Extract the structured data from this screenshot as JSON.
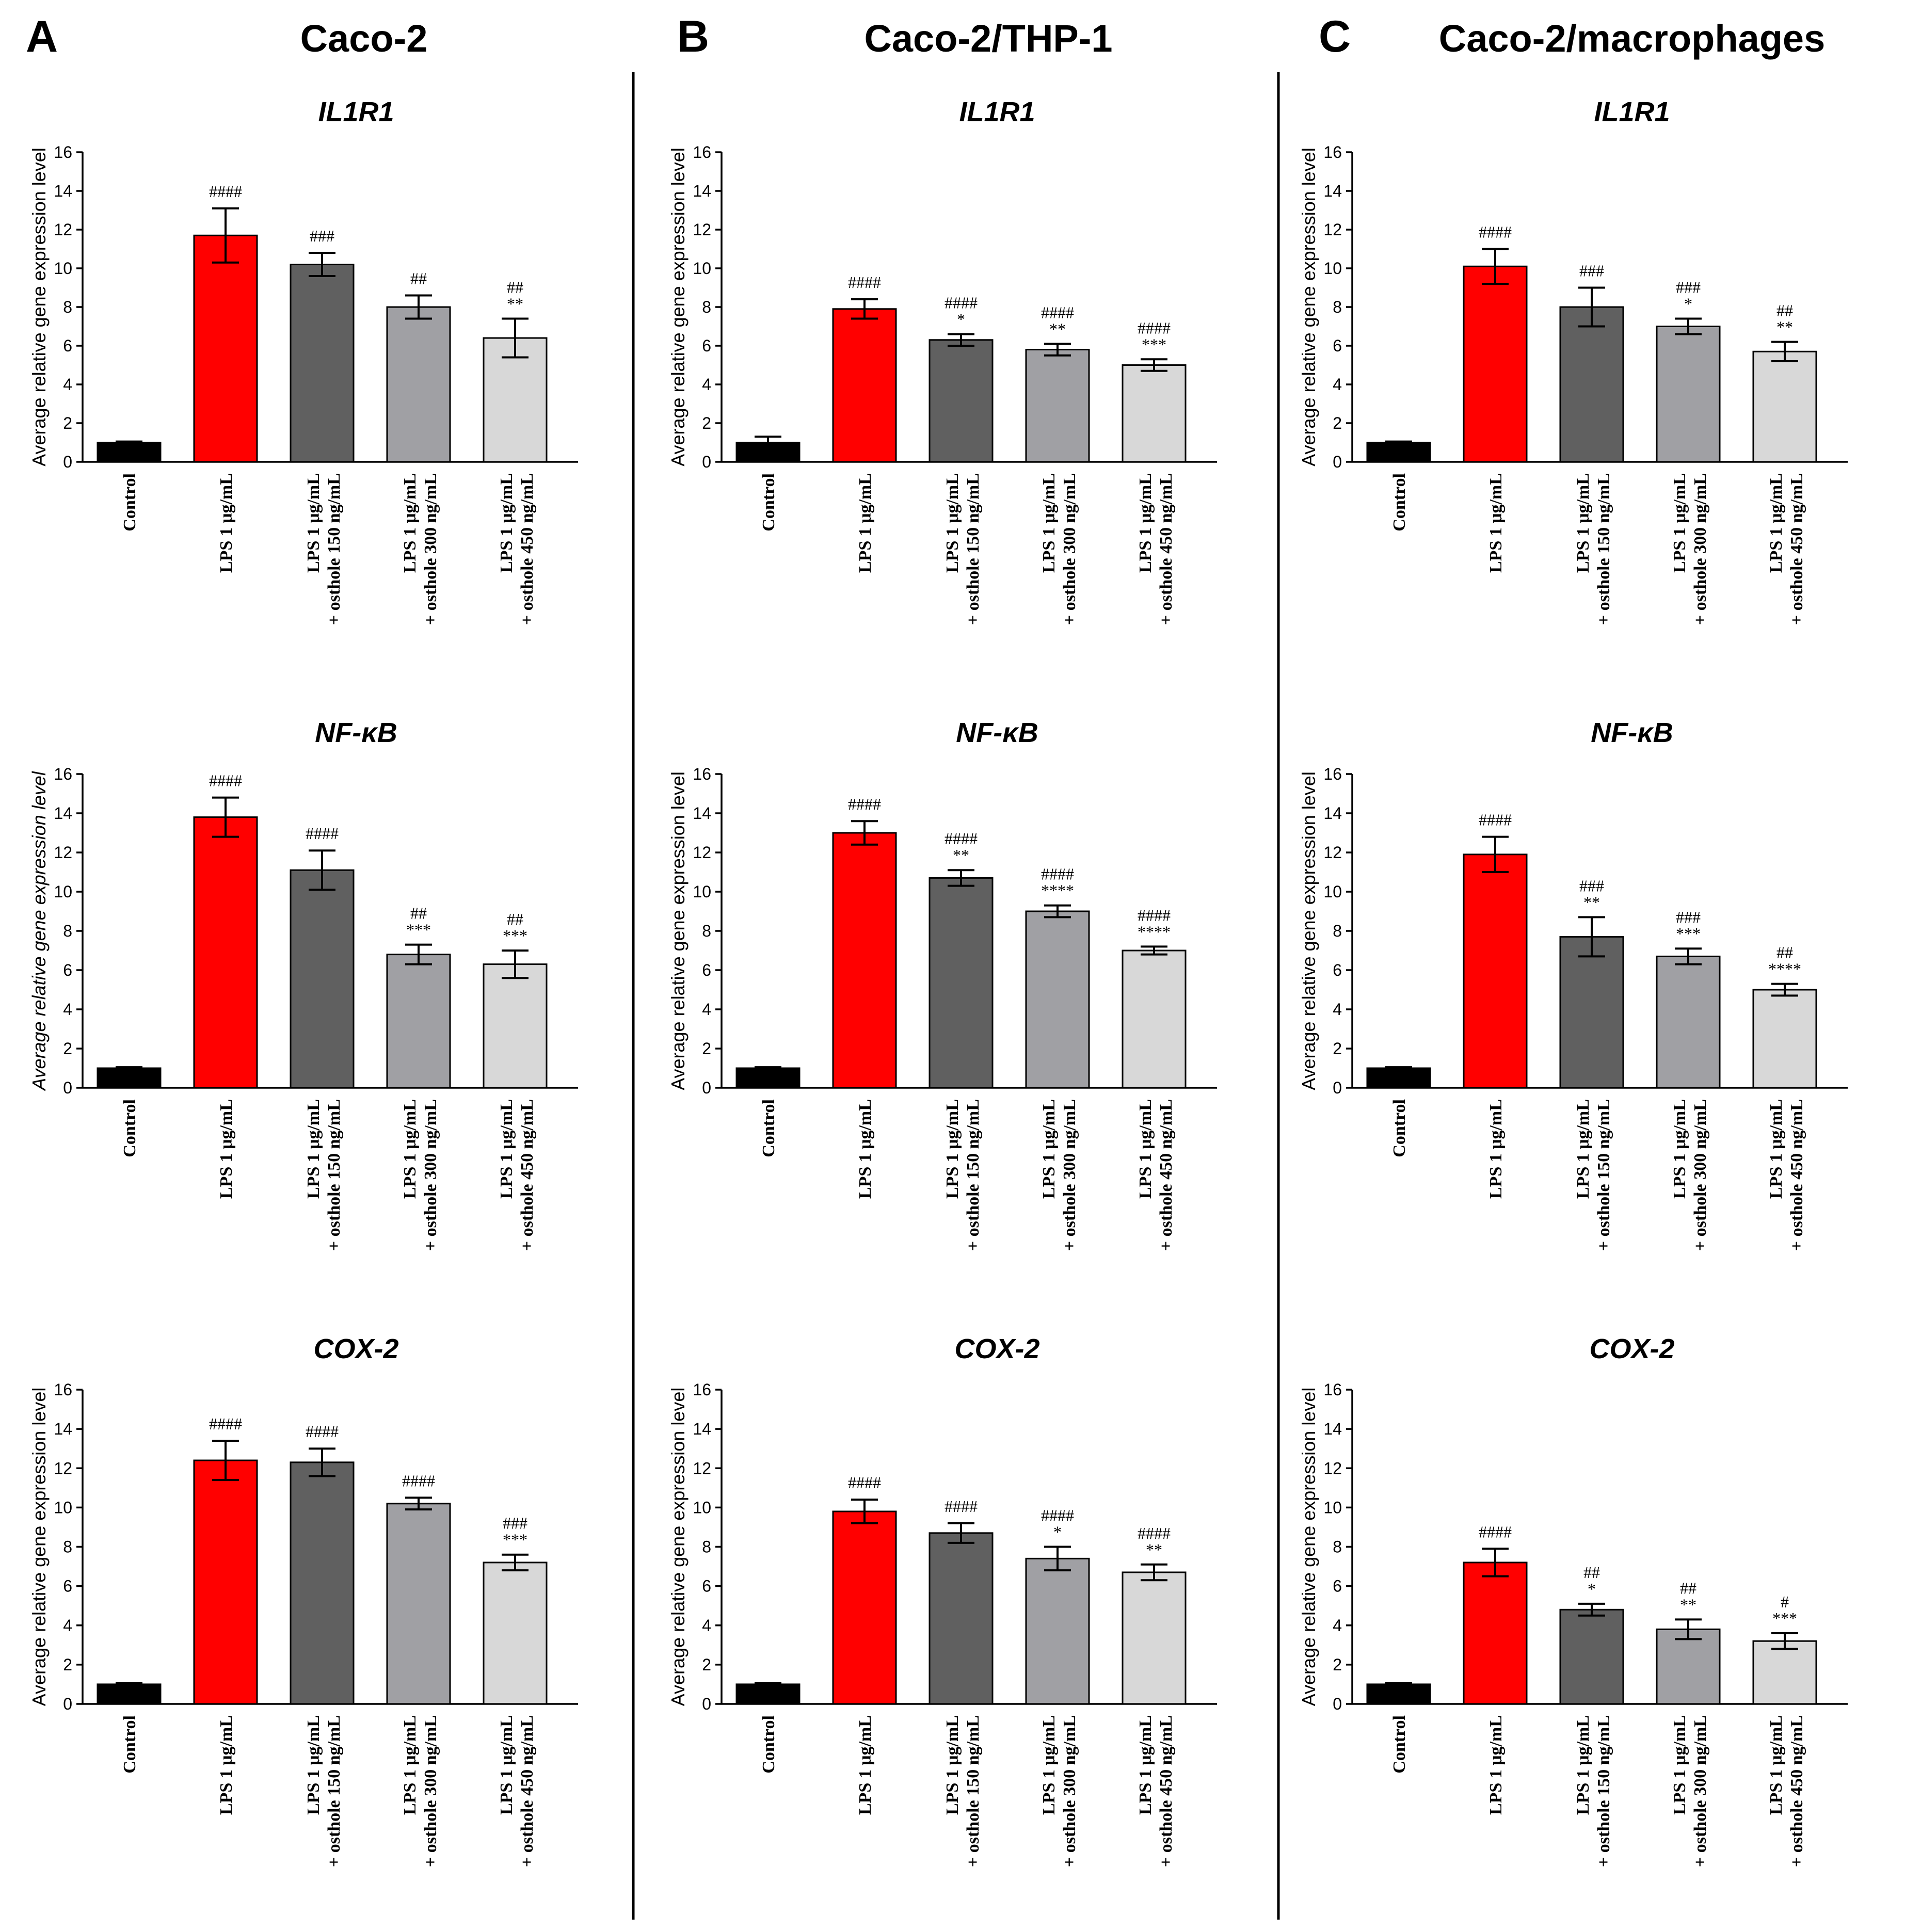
{
  "figure": {
    "columns": [
      {
        "letter": "A",
        "title": "Caco-2"
      },
      {
        "letter": "B",
        "title": "Caco-2/THP-1"
      },
      {
        "letter": "C",
        "title": "Caco-2/macrophages"
      }
    ]
  },
  "colors": {
    "bars": [
      "#000000",
      "#ff0000",
      "#606060",
      "#a0a0a4",
      "#d8d8d8"
    ]
  },
  "chart_data": [
    {
      "type": "bar",
      "column": "Caco-2",
      "title": "IL1R1",
      "ylabel": "Average relative gene expression level",
      "ylabel_italic": false,
      "ylim": [
        0,
        16
      ],
      "yticks": [
        0,
        2,
        4,
        6,
        8,
        10,
        12,
        14,
        16
      ],
      "categories": [
        "Control",
        "LPS 1 μg/mL",
        "LPS 1 μg/mL|+ osthole 150 ng/mL",
        "LPS 1 μg/mL|+ osthole 300 ng/mL",
        "LPS 1 μg/mL|+ osthole 450 ng/mL"
      ],
      "values": [
        1.0,
        11.7,
        10.2,
        8.0,
        6.4
      ],
      "errors": [
        0.05,
        1.4,
        0.6,
        0.6,
        1.0
      ],
      "sig_hash": [
        "",
        "####",
        "###",
        "##",
        "##"
      ],
      "sig_star": [
        "",
        "",
        "",
        "",
        "**"
      ]
    },
    {
      "type": "bar",
      "column": "Caco-2/THP-1",
      "title": "IL1R1",
      "ylabel": "Average relative gene expression level",
      "ylabel_italic": false,
      "ylim": [
        0,
        16
      ],
      "yticks": [
        0,
        2,
        4,
        6,
        8,
        10,
        12,
        14,
        16
      ],
      "categories": [
        "Control",
        "LPS 1 μg/mL",
        "LPS 1 μg/mL|+ osthole 150 ng/mL",
        "LPS 1 μg/mL|+ osthole 300 ng/mL",
        "LPS 1 μg/mL|+ osthole 450 ng/mL"
      ],
      "values": [
        1.0,
        7.9,
        6.3,
        5.8,
        5.0
      ],
      "errors": [
        0.3,
        0.5,
        0.3,
        0.3,
        0.3
      ],
      "sig_hash": [
        "",
        "####",
        "####",
        "####",
        "####"
      ],
      "sig_star": [
        "",
        "",
        "*",
        "**",
        "***"
      ]
    },
    {
      "type": "bar",
      "column": "Caco-2/macrophages",
      "title": "IL1R1",
      "ylabel": "Average relative gene expression level",
      "ylabel_italic": false,
      "ylim": [
        0,
        16
      ],
      "yticks": [
        0,
        2,
        4,
        6,
        8,
        10,
        12,
        14,
        16
      ],
      "categories": [
        "Control",
        "LPS 1 μg/mL",
        "LPS 1 μg/mL|+ osthole 150 ng/mL",
        "LPS 1 μg/mL|+ osthole 300 ng/mL",
        "LPS 1 μg/mL|+ osthole 450 ng/mL"
      ],
      "values": [
        1.0,
        10.1,
        8.0,
        7.0,
        5.7
      ],
      "errors": [
        0.05,
        0.9,
        1.0,
        0.4,
        0.5
      ],
      "sig_hash": [
        "",
        "####",
        "###",
        "###",
        "##"
      ],
      "sig_star": [
        "",
        "",
        "",
        "*",
        "**"
      ]
    },
    {
      "type": "bar",
      "column": "Caco-2",
      "title": "NF-κB",
      "ylabel": "Average relative gene expression level",
      "ylabel_italic": true,
      "ylim": [
        0,
        16
      ],
      "yticks": [
        0,
        2,
        4,
        6,
        8,
        10,
        12,
        14,
        16
      ],
      "categories": [
        "Control",
        "LPS 1 μg/mL",
        "LPS 1 μg/mL|+ osthole 150 ng/mL",
        "LPS 1 μg/mL|+ osthole 300 ng/mL",
        "LPS 1 μg/mL|+ osthole 450 ng/mL"
      ],
      "values": [
        1.0,
        13.8,
        11.1,
        6.8,
        6.3
      ],
      "errors": [
        0.05,
        1.0,
        1.0,
        0.5,
        0.7
      ],
      "sig_hash": [
        "",
        "####",
        "####",
        "##",
        "##"
      ],
      "sig_star": [
        "",
        "",
        "",
        "***",
        "***"
      ]
    },
    {
      "type": "bar",
      "column": "Caco-2/THP-1",
      "title": "NF-κB",
      "ylabel": "Average relative gene expression level",
      "ylabel_italic": false,
      "ylim": [
        0,
        16
      ],
      "yticks": [
        0,
        2,
        4,
        6,
        8,
        10,
        12,
        14,
        16
      ],
      "categories": [
        "Control",
        "LPS 1 μg/mL",
        "LPS 1 μg/mL|+ osthole 150 ng/mL",
        "LPS 1 μg/mL|+ osthole 300 ng/mL",
        "LPS 1 μg/mL|+ osthole 450 ng/mL"
      ],
      "values": [
        1.0,
        13.0,
        10.7,
        9.0,
        7.0
      ],
      "errors": [
        0.05,
        0.6,
        0.4,
        0.3,
        0.2
      ],
      "sig_hash": [
        "",
        "####",
        "####",
        "####",
        "####"
      ],
      "sig_star": [
        "",
        "",
        "**",
        "****",
        "****"
      ]
    },
    {
      "type": "bar",
      "column": "Caco-2/macrophages",
      "title": "NF-κB",
      "ylabel": "Average relative gene expression level",
      "ylabel_italic": false,
      "ylim": [
        0,
        16
      ],
      "yticks": [
        0,
        2,
        4,
        6,
        8,
        10,
        12,
        14,
        16
      ],
      "categories": [
        "Control",
        "LPS 1 μg/mL",
        "LPS 1 μg/mL|+ osthole 150 ng/mL",
        "LPS 1 μg/mL|+ osthole 300 ng/mL",
        "LPS 1 μg/mL|+ osthole 450 ng/mL"
      ],
      "values": [
        1.0,
        11.9,
        7.7,
        6.7,
        5.0
      ],
      "errors": [
        0.05,
        0.9,
        1.0,
        0.4,
        0.3
      ],
      "sig_hash": [
        "",
        "####",
        "###",
        "###",
        "##"
      ],
      "sig_star": [
        "",
        "",
        "**",
        "***",
        "****"
      ]
    },
    {
      "type": "bar",
      "column": "Caco-2",
      "title": "COX-2",
      "ylabel": "Average relative gene expression level",
      "ylabel_italic": false,
      "ylim": [
        0,
        16
      ],
      "yticks": [
        0,
        2,
        4,
        6,
        8,
        10,
        12,
        14,
        16
      ],
      "categories": [
        "Control",
        "LPS 1 μg/mL",
        "LPS 1 μg/mL|+ osthole 150 ng/mL",
        "LPS 1 μg/mL|+ osthole 300 ng/mL",
        "LPS 1 μg/mL|+ osthole 450 ng/mL"
      ],
      "values": [
        1.0,
        12.4,
        12.3,
        10.2,
        7.2
      ],
      "errors": [
        0.05,
        1.0,
        0.7,
        0.3,
        0.4
      ],
      "sig_hash": [
        "",
        "####",
        "####",
        "####",
        "###"
      ],
      "sig_star": [
        "",
        "",
        "",
        "",
        "***"
      ]
    },
    {
      "type": "bar",
      "column": "Caco-2/THP-1",
      "title": "COX-2",
      "ylabel": "Average relative gene expression level",
      "ylabel_italic": false,
      "ylim": [
        0,
        16
      ],
      "yticks": [
        0,
        2,
        4,
        6,
        8,
        10,
        12,
        14,
        16
      ],
      "categories": [
        "Control",
        "LPS 1 μg/mL",
        "LPS 1 μg/mL|+ osthole 150 ng/mL",
        "LPS 1 μg/mL|+ osthole 300 ng/mL",
        "LPS 1 μg/mL|+ osthole 450 ng/mL"
      ],
      "values": [
        1.0,
        9.8,
        8.7,
        7.4,
        6.7
      ],
      "errors": [
        0.05,
        0.6,
        0.5,
        0.6,
        0.4
      ],
      "sig_hash": [
        "",
        "####",
        "####",
        "####",
        "####"
      ],
      "sig_star": [
        "",
        "",
        "",
        "*",
        "**"
      ]
    },
    {
      "type": "bar",
      "column": "Caco-2/macrophages",
      "title": "COX-2",
      "ylabel": "Average relative gene expression level",
      "ylabel_italic": false,
      "ylim": [
        0,
        16
      ],
      "yticks": [
        0,
        2,
        4,
        6,
        8,
        10,
        12,
        14,
        16
      ],
      "categories": [
        "Control",
        "LPS 1 μg/mL",
        "LPS 1 μg/mL|+ osthole 150 ng/mL",
        "LPS 1 μg/mL|+ osthole 300 ng/mL",
        "LPS 1 μg/mL|+ osthole 450 ng/mL"
      ],
      "values": [
        1.0,
        7.2,
        4.8,
        3.8,
        3.2
      ],
      "errors": [
        0.05,
        0.7,
        0.3,
        0.5,
        0.4
      ],
      "sig_hash": [
        "",
        "####",
        "##",
        "##",
        "#"
      ],
      "sig_star": [
        "",
        "",
        "*",
        "**",
        "***"
      ]
    }
  ]
}
